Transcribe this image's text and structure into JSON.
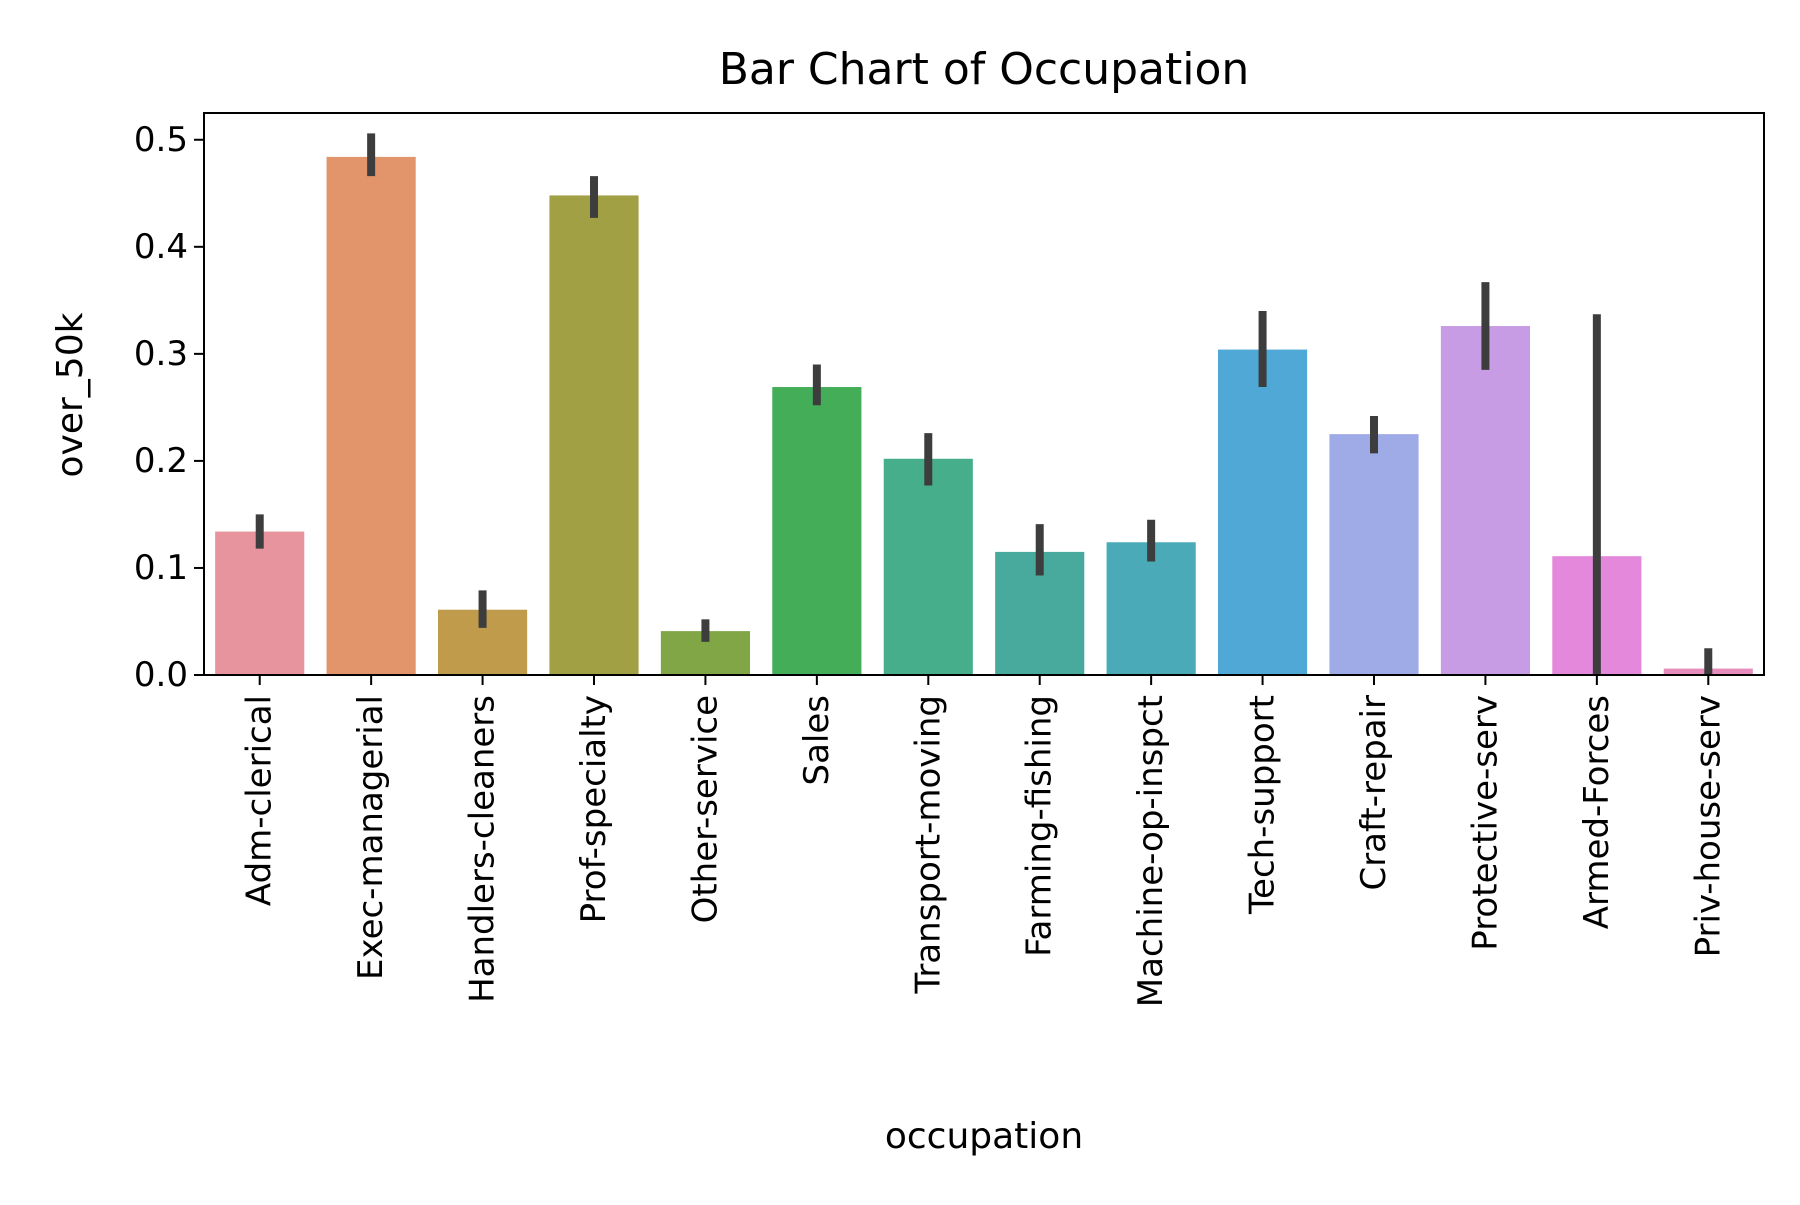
{
  "chart_data": {
    "type": "bar",
    "title": "Bar Chart of Occupation",
    "xlabel": "occupation",
    "ylabel": "over_50k",
    "ylim": [
      0,
      0.525
    ],
    "yticks": [
      "0.0",
      "0.1",
      "0.2",
      "0.3",
      "0.4",
      "0.5"
    ],
    "grid": false,
    "legend": "none",
    "categories": [
      "Adm-clerical",
      "Exec-managerial",
      "Handlers-cleaners",
      "Prof-specialty",
      "Other-service",
      "Sales",
      "Transport-moving",
      "Farming-fishing",
      "Machine-op-inspct",
      "Tech-support",
      "Craft-repair",
      "Protective-serv",
      "Armed-Forces",
      "Priv-house-serv"
    ],
    "values": [
      0.134,
      0.484,
      0.061,
      0.448,
      0.041,
      0.269,
      0.202,
      0.115,
      0.124,
      0.304,
      0.225,
      0.326,
      0.111,
      0.006
    ],
    "ci_low": [
      0.118,
      0.466,
      0.044,
      0.427,
      0.031,
      0.252,
      0.177,
      0.093,
      0.106,
      0.269,
      0.207,
      0.285,
      0.0,
      0.0
    ],
    "ci_high": [
      0.15,
      0.506,
      0.079,
      0.466,
      0.052,
      0.29,
      0.226,
      0.141,
      0.145,
      0.34,
      0.242,
      0.367,
      0.337,
      0.025
    ],
    "colors": [
      "#e8949f",
      "#e2956b",
      "#c19b4c",
      "#a1a044",
      "#80a646",
      "#43ad58",
      "#46ae8b",
      "#48aa9d",
      "#4aaab7",
      "#50a8d6",
      "#9eabe6",
      "#c79ce4",
      "#e488db",
      "#e68dbd"
    ],
    "errorbar_color": "#3d3d3d"
  }
}
